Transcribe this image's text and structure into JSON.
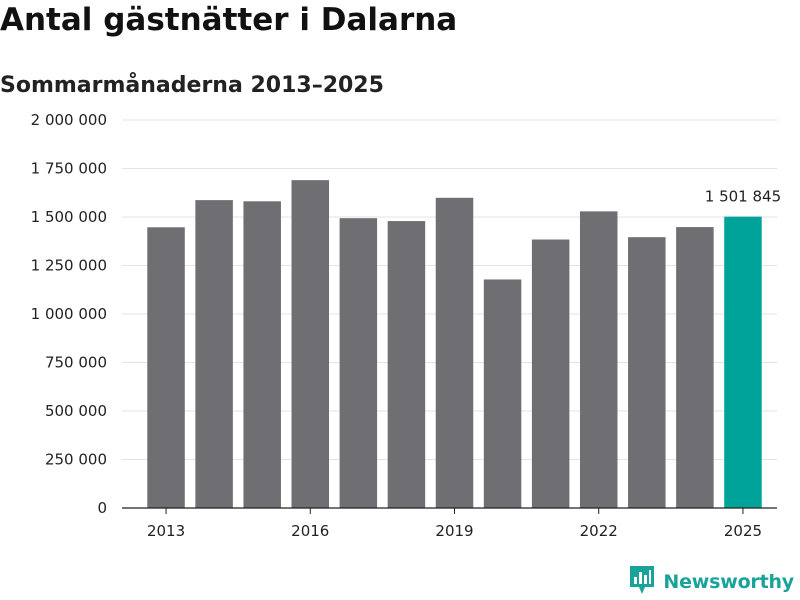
{
  "title": "Antal gästnätter i Dalarna",
  "subtitle": "Sommarmånaderna 2013–2025",
  "brand": {
    "name": "Newsworthy",
    "icon": "newsworthy-logo-icon",
    "color": "#1aa39a"
  },
  "colors": {
    "bar": "#6e6e73",
    "highlight": "#00a39a",
    "grid": "#e3e3e3",
    "axis": "#222222"
  },
  "chart_data": {
    "type": "bar",
    "title": "Antal gästnätter i Dalarna",
    "subtitle": "Sommarmånaderna 2013–2025",
    "categories": [
      2013,
      2014,
      2015,
      2016,
      2017,
      2018,
      2019,
      2020,
      2021,
      2022,
      2023,
      2024,
      2025
    ],
    "values": [
      1447000,
      1587000,
      1581000,
      1690000,
      1494000,
      1479000,
      1599000,
      1178000,
      1384000,
      1529000,
      1396000,
      1448000,
      1501845
    ],
    "highlight_index": 12,
    "ylim": [
      0,
      2000000
    ],
    "yticks": [
      0,
      250000,
      500000,
      750000,
      1000000,
      1250000,
      1500000,
      1750000,
      2000000
    ],
    "ytick_labels": [
      "0",
      "250 000",
      "500 000",
      "750 000",
      "1 000 000",
      "1 250 000",
      "1 500 000",
      "1 750 000",
      "2 000 000"
    ],
    "xtick_labels": [
      "2013",
      "2016",
      "2019",
      "2022",
      "2025"
    ],
    "xtick_categories": [
      2013,
      2016,
      2019,
      2022,
      2025
    ],
    "data_labels": [
      {
        "category": 2025,
        "text": "1 501 845"
      }
    ],
    "xlabel": "",
    "ylabel": "",
    "grid": true,
    "legend": "none"
  }
}
